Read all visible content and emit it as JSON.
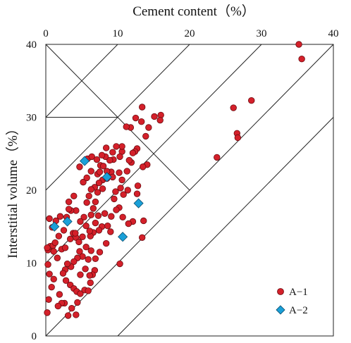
{
  "chart_data": {
    "type": "scatter",
    "xlabel": "Cement content（%）",
    "ylabel": "Interstitial volume（%）",
    "xlim": [
      0,
      40
    ],
    "ylim": [
      0,
      40
    ],
    "x_ticks": [
      "0",
      "10",
      "20",
      "30",
      "40"
    ],
    "y_ticks": [
      "0",
      "10",
      "20",
      "30",
      "40"
    ],
    "x_axis_position": "top",
    "grid": false,
    "legend_position": "bottom-right",
    "reference_lines": [
      {
        "x1": 0,
        "y1": 0,
        "x2": 40,
        "y2": 40
      },
      {
        "x1": 0,
        "y1": 10,
        "x2": 30,
        "y2": 40
      },
      {
        "x1": 0,
        "y1": 20,
        "x2": 20,
        "y2": 40
      },
      {
        "x1": 0,
        "y1": 30,
        "x2": 10,
        "y2": 40
      },
      {
        "x1": 10,
        "y1": 0,
        "x2": 40,
        "y2": 30
      },
      {
        "x1": 0,
        "y1": 40,
        "x2": 20,
        "y2": 20
      },
      {
        "x1": 10,
        "y1": 30,
        "x2": 0,
        "y2": 30
      },
      {
        "x1": 0,
        "y1": 20,
        "x2": 0,
        "y2": 20
      }
    ],
    "series": [
      {
        "name": "A−1",
        "marker": "circle",
        "color": "#d4202a",
        "points": [
          [
            35.2,
            40
          ],
          [
            35.6,
            38
          ],
          [
            28.6,
            32.3
          ],
          [
            26.1,
            31.3
          ],
          [
            26.6,
            27.8
          ],
          [
            26.7,
            27.2
          ],
          [
            23.8,
            24.5
          ],
          [
            16,
            30.3
          ],
          [
            15.9,
            29.6
          ],
          [
            15.1,
            30.1
          ],
          [
            14.3,
            28.6
          ],
          [
            13.3,
            29.4
          ],
          [
            13.4,
            31.4
          ],
          [
            12.5,
            29.9
          ],
          [
            11.8,
            28.6
          ],
          [
            11.2,
            28.7
          ],
          [
            13.9,
            27.4
          ],
          [
            14.1,
            23.5
          ],
          [
            13.5,
            23.2
          ],
          [
            12.7,
            25.7
          ],
          [
            12.4,
            25.3
          ],
          [
            12.1,
            25.1
          ],
          [
            11.9,
            23.8
          ],
          [
            11.6,
            24.1
          ],
          [
            11.3,
            22.6
          ],
          [
            10.6,
            25.3
          ],
          [
            10.3,
            24.6
          ],
          [
            10.6,
            26
          ],
          [
            9.8,
            26
          ],
          [
            9.3,
            25.2
          ],
          [
            9.4,
            24.2
          ],
          [
            8.9,
            24.1
          ],
          [
            8.4,
            25.8
          ],
          [
            8.3,
            24.6
          ],
          [
            7.8,
            24.8
          ],
          [
            7.6,
            23.4
          ],
          [
            7.2,
            22.2
          ],
          [
            7.5,
            22.5
          ],
          [
            7.9,
            21.4
          ],
          [
            7.4,
            21
          ],
          [
            7.9,
            20.2
          ],
          [
            8.5,
            21.6
          ],
          [
            8.7,
            22.3
          ],
          [
            9.1,
            22.5
          ],
          [
            9.3,
            21.8
          ],
          [
            10.2,
            22.4
          ],
          [
            10.6,
            21.4
          ],
          [
            10.4,
            20.3
          ],
          [
            11.4,
            20
          ],
          [
            12.7,
            19.5
          ],
          [
            12.8,
            20.6
          ],
          [
            10.8,
            19.4
          ],
          [
            9.7,
            19.8
          ],
          [
            9.5,
            18.8
          ],
          [
            10.2,
            17.6
          ],
          [
            9.8,
            17.3
          ],
          [
            9.1,
            16.4
          ],
          [
            8.6,
            15.1
          ],
          [
            8.2,
            16.8
          ],
          [
            10.7,
            16.3
          ],
          [
            12.1,
            15.7
          ],
          [
            13.6,
            15.8
          ],
          [
            13.4,
            13.5
          ],
          [
            11.5,
            15.4
          ],
          [
            9,
            14.3
          ],
          [
            8.4,
            12.7
          ],
          [
            6.8,
            20.4
          ],
          [
            6.3,
            20.1
          ],
          [
            6,
            19.2
          ],
          [
            5.7,
            18.3
          ],
          [
            6.6,
            17.5
          ],
          [
            6.3,
            16.6
          ],
          [
            6.9,
            15.5
          ],
          [
            7.3,
            16.5
          ],
          [
            7.8,
            15
          ],
          [
            7.4,
            14.5
          ],
          [
            6.6,
            14.2
          ],
          [
            6.2,
            13.7
          ],
          [
            5.3,
            16.3
          ],
          [
            5.6,
            15.1
          ],
          [
            4.8,
            15.7
          ],
          [
            4.2,
            17.2
          ],
          [
            3.5,
            17.2
          ],
          [
            3.2,
            18.4
          ],
          [
            2.9,
            16.3
          ],
          [
            2.5,
            14.5
          ],
          [
            3.8,
            14.1
          ],
          [
            4.2,
            13.5
          ],
          [
            4.6,
            12.9
          ],
          [
            5.1,
            13.6
          ],
          [
            5.6,
            12.2
          ],
          [
            6.3,
            11.7
          ],
          [
            5.9,
            10.5
          ],
          [
            6.8,
            9
          ],
          [
            6.5,
            8.4
          ],
          [
            6.1,
            8.3
          ],
          [
            5.5,
            9.2
          ],
          [
            5.1,
            10.9
          ],
          [
            4.7,
            11.6
          ],
          [
            4.4,
            10.7
          ],
          [
            3.9,
            10.2
          ],
          [
            3.5,
            9.5
          ],
          [
            3,
            9.9
          ],
          [
            2.7,
            9.1
          ],
          [
            2.4,
            8.6
          ],
          [
            2.8,
            7.6
          ],
          [
            3.4,
            7
          ],
          [
            3.9,
            6.5
          ],
          [
            4.3,
            6.1
          ],
          [
            4.8,
            5.8
          ],
          [
            5.4,
            6.3
          ],
          [
            5.9,
            6.2
          ],
          [
            6.2,
            7.3
          ],
          [
            4.4,
            4.6
          ],
          [
            3.6,
            3.8
          ],
          [
            2.6,
            4.5
          ],
          [
            2.2,
            4.5
          ],
          [
            1.9,
            5.7
          ],
          [
            1.1,
            7.8
          ],
          [
            0.8,
            6.7
          ],
          [
            0.5,
            8.5
          ],
          [
            0.3,
            9.8
          ],
          [
            0.3,
            11.8
          ],
          [
            0.6,
            12.3
          ],
          [
            1,
            12.4
          ],
          [
            1.8,
            13.7
          ],
          [
            1.3,
            12.8
          ],
          [
            1.1,
            11.6
          ],
          [
            1.6,
            10.7
          ],
          [
            2.2,
            11.9
          ],
          [
            2.7,
            12.1
          ],
          [
            3.4,
            13.3
          ],
          [
            4.1,
            14.1
          ],
          [
            0.9,
            14.9
          ],
          [
            1.4,
            15.8
          ],
          [
            2,
            16.4
          ],
          [
            3.2,
            17.4
          ],
          [
            3.9,
            19.2
          ],
          [
            5.2,
            21.1
          ],
          [
            5.7,
            21.7
          ],
          [
            6.3,
            22.6
          ],
          [
            0.5,
            16.1
          ],
          [
            0.2,
            12.1
          ],
          [
            0.4,
            5
          ],
          [
            0.2,
            3.2
          ],
          [
            3.1,
            2.8
          ],
          [
            4.2,
            2.9
          ],
          [
            6.9,
            10.6
          ],
          [
            7.5,
            11.5
          ],
          [
            10.3,
            9.9
          ],
          [
            4.7,
            23.2
          ],
          [
            5.8,
            24.3
          ],
          [
            6.4,
            24.6
          ],
          [
            7.1,
            24.2
          ],
          [
            8,
            23.3
          ],
          [
            8.5,
            22.6
          ],
          [
            7.2,
            19.7
          ],
          [
            6.9,
            18.4
          ],
          [
            6.1,
            14.4
          ],
          [
            4.8,
            8.4
          ],
          [
            1.7,
            4.1
          ]
        ]
      },
      {
        "name": "A−2",
        "marker": "diamond",
        "color": "#1aa0d8",
        "points": [
          [
            5.4,
            24
          ],
          [
            8.5,
            21.8
          ],
          [
            12.9,
            18.2
          ],
          [
            1.2,
            15
          ],
          [
            3,
            15.7
          ],
          [
            10.7,
            13.6
          ]
        ]
      }
    ]
  }
}
